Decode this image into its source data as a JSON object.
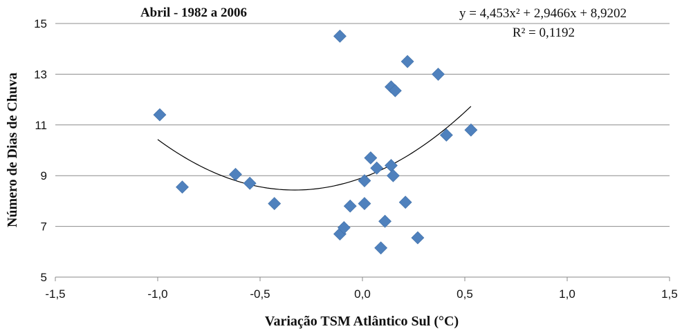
{
  "chart_data": {
    "type": "scatter",
    "title": "Abril  - 1982 a 2006",
    "xlabel": "Variação TSM Atlântico Sul (°C)",
    "ylabel": "Número de Dias de Chuva",
    "xlim": [
      -1.5,
      1.5
    ],
    "ylim": [
      5,
      15
    ],
    "x_ticks": [
      "-1,5",
      "-1,0",
      "-0,5",
      "0,0",
      "0,5",
      "1,0",
      "1,5"
    ],
    "y_ticks": [
      "5",
      "7",
      "9",
      "11",
      "13",
      "15"
    ],
    "x_tick_values": [
      -1.5,
      -1.0,
      -0.5,
      0.0,
      0.5,
      1.0,
      1.5
    ],
    "y_tick_values": [
      5,
      7,
      9,
      11,
      13,
      15
    ],
    "grid": "horizontal",
    "marker": "diamond",
    "series_color": "#4f81bd",
    "points": [
      {
        "x": -0.99,
        "y": 11.4
      },
      {
        "x": -0.88,
        "y": 8.55
      },
      {
        "x": -0.62,
        "y": 9.05
      },
      {
        "x": -0.55,
        "y": 8.7
      },
      {
        "x": -0.43,
        "y": 7.9
      },
      {
        "x": -0.11,
        "y": 14.5
      },
      {
        "x": -0.11,
        "y": 6.7
      },
      {
        "x": -0.09,
        "y": 6.95
      },
      {
        "x": -0.06,
        "y": 7.8
      },
      {
        "x": 0.01,
        "y": 7.9
      },
      {
        "x": 0.01,
        "y": 8.8
      },
      {
        "x": 0.04,
        "y": 9.7
      },
      {
        "x": 0.07,
        "y": 9.3
      },
      {
        "x": 0.09,
        "y": 6.15
      },
      {
        "x": 0.11,
        "y": 7.2
      },
      {
        "x": 0.14,
        "y": 12.5
      },
      {
        "x": 0.14,
        "y": 9.4
      },
      {
        "x": 0.15,
        "y": 9.0
      },
      {
        "x": 0.16,
        "y": 12.35
      },
      {
        "x": 0.21,
        "y": 7.95
      },
      {
        "x": 0.22,
        "y": 13.5
      },
      {
        "x": 0.27,
        "y": 6.55
      },
      {
        "x": 0.37,
        "y": 13.0
      },
      {
        "x": 0.41,
        "y": 10.6
      },
      {
        "x": 0.53,
        "y": 10.8
      }
    ],
    "trendline": {
      "type": "polynomial",
      "coefficients": [
        4.453,
        2.9466,
        8.9202
      ],
      "x_range": [
        -1.0,
        0.53
      ],
      "color": "#000000",
      "equation_line1": "y = 4,453x² + 2,9466x + 8,9202",
      "equation_line2": "R² = 0,1192"
    }
  }
}
